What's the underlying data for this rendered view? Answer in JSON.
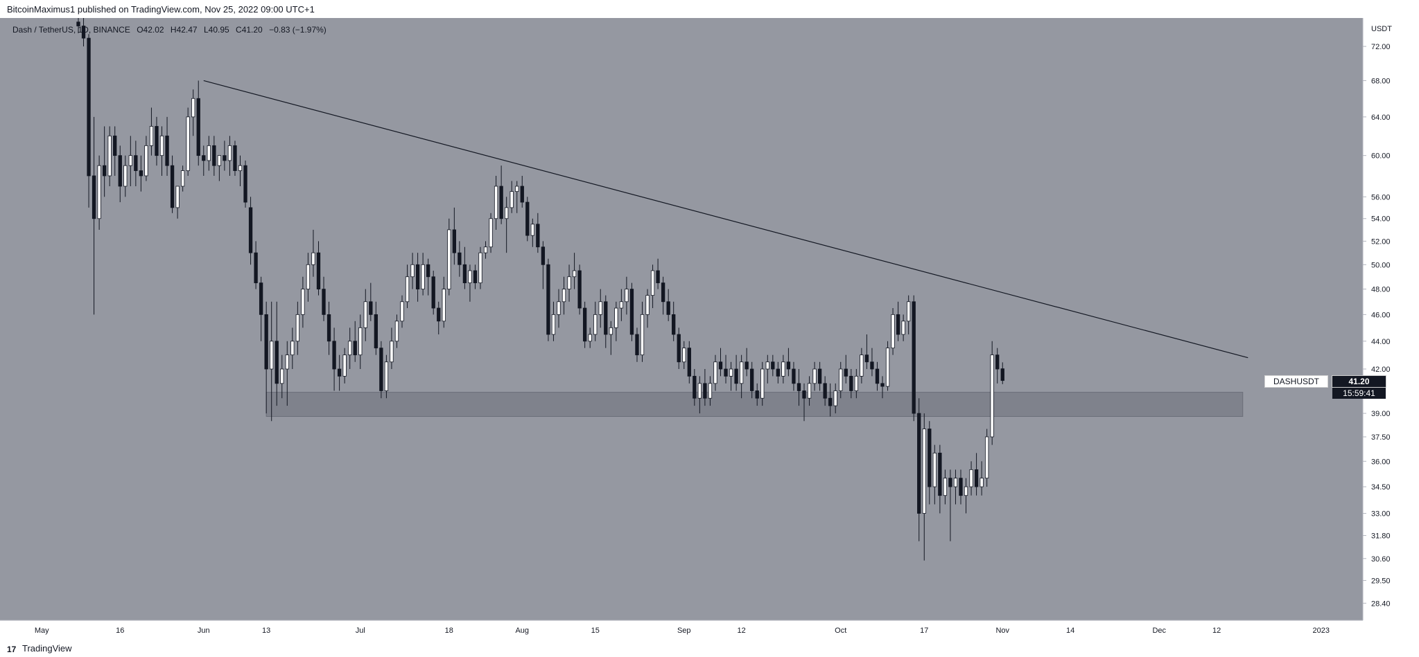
{
  "header": {
    "publisher": "BitcoinMaximus1 published on TradingView.com, Nov 25, 2022 09:00 UTC+1"
  },
  "legend": {
    "title": "Dash / TetherUS, 1D, BINANCE",
    "o_label": "O",
    "o_value": "42.02",
    "h_label": "H",
    "h_value": "42.47",
    "l_label": "L",
    "l_value": "40.95",
    "c_label": "C",
    "c_value": "41.20",
    "change": "−0.83 (−1.97%)"
  },
  "price_tag": {
    "symbol": "DASHUSDT",
    "price": "41.20",
    "countdown": "15:59:41"
  },
  "footer": {
    "brand": "TradingView",
    "logo_icon": "tradingview-logo-icon"
  },
  "colors": {
    "background": "#9598a1",
    "up": "#ffffff",
    "down": "#131722",
    "zone": "#787b86"
  },
  "chart_data": {
    "type": "candlestick",
    "symbol": "DASHUSDT",
    "interval": "1D",
    "scale": "log",
    "currency": "USDT",
    "y_ticks": [
      72.0,
      68.0,
      64.0,
      60.0,
      56.0,
      54.0,
      52.0,
      50.0,
      48.0,
      46.0,
      44.0,
      42.0,
      39.0,
      37.5,
      36.0,
      34.5,
      33.0,
      31.8,
      30.6,
      29.5,
      28.4
    ],
    "y_tick_labels": [
      "72.00",
      "68.00",
      "64.00",
      "60.00",
      "56.00",
      "54.00",
      "52.00",
      "50.00",
      "48.00",
      "46.00",
      "44.00",
      "42.00",
      "39.00",
      "37.50",
      "36.00",
      "34.50",
      "33.00",
      "31.80",
      "30.60",
      "29.50",
      "28.40"
    ],
    "x_ticks": [
      {
        "label": "May",
        "date": "2022-05-01"
      },
      {
        "label": "16",
        "date": "2022-05-16"
      },
      {
        "label": "Jun",
        "date": "2022-06-01"
      },
      {
        "label": "13",
        "date": "2022-06-13"
      },
      {
        "label": "Jul",
        "date": "2022-07-01"
      },
      {
        "label": "18",
        "date": "2022-07-18"
      },
      {
        "label": "Aug",
        "date": "2022-08-01"
      },
      {
        "label": "15",
        "date": "2022-08-15"
      },
      {
        "label": "Sep",
        "date": "2022-09-01"
      },
      {
        "label": "12",
        "date": "2022-09-12"
      },
      {
        "label": "Oct",
        "date": "2022-10-01"
      },
      {
        "label": "17",
        "date": "2022-10-17"
      },
      {
        "label": "Nov",
        "date": "2022-11-01"
      },
      {
        "label": "14",
        "date": "2022-11-14"
      },
      {
        "label": "Dec",
        "date": "2022-12-01"
      },
      {
        "label": "12",
        "date": "2022-12-12"
      },
      {
        "label": "2023",
        "date": "2023-01-01"
      }
    ],
    "y_range": [
      27.6,
      75.5
    ],
    "x_range": [
      "2022-04-23",
      "2023-01-09"
    ],
    "trendline": {
      "start": [
        "2022-06-01",
        68.0
      ],
      "end": [
        "2022-12-18",
        42.8
      ]
    },
    "support_zone": {
      "start": "2022-06-13",
      "end": "2022-12-17",
      "low": 38.8,
      "high": 40.4
    },
    "candles_start": "2022-05-08",
    "candles": [
      [
        75.0,
        77.0,
        73.6,
        74.5
      ],
      [
        74.5,
        75.5,
        72.0,
        73.0
      ],
      [
        73.0,
        73.5,
        55.0,
        58.0
      ],
      [
        58.0,
        64.0,
        46.0,
        54.0
      ],
      [
        54.0,
        60.0,
        53.0,
        59.0
      ],
      [
        59.0,
        63.0,
        56.0,
        58.0
      ],
      [
        58.0,
        63.0,
        57.0,
        62.0
      ],
      [
        62.0,
        63.0,
        58.0,
        60.0
      ],
      [
        60.0,
        61.0,
        55.5,
        57.0
      ],
      [
        57.0,
        60.0,
        56.0,
        59.0
      ],
      [
        59.0,
        62.0,
        57.0,
        60.0
      ],
      [
        60.0,
        61.5,
        57.0,
        58.5
      ],
      [
        58.5,
        60.0,
        56.5,
        58.0
      ],
      [
        58.0,
        62.0,
        57.5,
        61.0
      ],
      [
        61.0,
        65.0,
        60.0,
        63.0
      ],
      [
        63.0,
        64.0,
        59.0,
        60.0
      ],
      [
        60.0,
        63.0,
        58.0,
        62.0
      ],
      [
        62.0,
        64.0,
        58.0,
        59.0
      ],
      [
        59.0,
        60.0,
        54.5,
        55.0
      ],
      [
        55.0,
        57.0,
        54.0,
        57.0
      ],
      [
        57.0,
        59.0,
        56.5,
        58.5
      ],
      [
        58.5,
        65.0,
        58.0,
        64.0
      ],
      [
        64.0,
        67.0,
        62.0,
        66.0
      ],
      [
        66.0,
        68.0,
        59.0,
        60.0
      ],
      [
        60.0,
        61.0,
        58.0,
        59.5
      ],
      [
        59.5,
        62.0,
        58.5,
        61.0
      ],
      [
        61.0,
        62.0,
        58.0,
        59.0
      ],
      [
        59.0,
        60.0,
        57.5,
        60.0
      ],
      [
        60.0,
        61.5,
        58.5,
        59.5
      ],
      [
        59.5,
        62.0,
        58.0,
        61.0
      ],
      [
        61.0,
        61.5,
        58.0,
        58.5
      ],
      [
        58.5,
        60.0,
        57.0,
        59.0
      ],
      [
        59.0,
        59.5,
        55.0,
        55.5
      ],
      [
        55.0,
        56.0,
        50.0,
        51.0
      ],
      [
        51.0,
        52.0,
        48.0,
        48.5
      ],
      [
        48.5,
        49.0,
        44.0,
        46.0
      ],
      [
        46.0,
        47.0,
        39.0,
        42.0
      ],
      [
        42.0,
        47.0,
        38.5,
        44.0
      ],
      [
        44.0,
        47.0,
        39.5,
        41.0
      ],
      [
        41.0,
        43.0,
        40.0,
        42.0
      ],
      [
        42.0,
        44.0,
        39.5,
        43.0
      ],
      [
        43.0,
        45.0,
        42.0,
        44.0
      ],
      [
        44.0,
        47.0,
        43.0,
        46.0
      ],
      [
        46.0,
        49.0,
        45.0,
        48.0
      ],
      [
        48.0,
        51.0,
        47.0,
        50.0
      ],
      [
        50.0,
        53.0,
        49.0,
        51.0
      ],
      [
        51.0,
        52.0,
        47.5,
        48.0
      ],
      [
        48.0,
        49.0,
        45.5,
        46.0
      ],
      [
        46.0,
        47.0,
        43.0,
        44.0
      ],
      [
        44.0,
        45.0,
        40.5,
        42.0
      ],
      [
        42.0,
        43.0,
        40.5,
        41.5
      ],
      [
        41.5,
        43.5,
        41.0,
        43.0
      ],
      [
        43.0,
        45.0,
        42.0,
        44.0
      ],
      [
        44.0,
        45.5,
        42.5,
        43.0
      ],
      [
        43.0,
        46.0,
        42.0,
        45.0
      ],
      [
        45.0,
        48.0,
        44.0,
        47.0
      ],
      [
        47.0,
        48.5,
        45.5,
        46.0
      ],
      [
        46.0,
        47.0,
        43.0,
        43.5
      ],
      [
        43.5,
        44.0,
        40.0,
        40.5
      ],
      [
        40.5,
        43.0,
        40.0,
        42.5
      ],
      [
        42.5,
        45.0,
        42.0,
        44.0
      ],
      [
        44.0,
        46.0,
        43.5,
        45.5
      ],
      [
        45.5,
        47.5,
        45.0,
        47.0
      ],
      [
        47.0,
        50.0,
        46.5,
        49.0
      ],
      [
        49.0,
        51.0,
        48.0,
        50.0
      ],
      [
        50.0,
        51.0,
        47.0,
        48.0
      ],
      [
        48.0,
        51.0,
        47.5,
        50.0
      ],
      [
        50.0,
        50.5,
        47.5,
        49.0
      ],
      [
        49.0,
        49.5,
        46.0,
        46.5
      ],
      [
        46.5,
        47.0,
        44.5,
        45.5
      ],
      [
        45.5,
        49.0,
        45.0,
        48.0
      ],
      [
        48.0,
        54.0,
        47.5,
        53.0
      ],
      [
        53.0,
        55.0,
        50.0,
        51.0
      ],
      [
        51.0,
        52.0,
        49.0,
        50.0
      ],
      [
        50.0,
        51.5,
        48.0,
        48.5
      ],
      [
        48.5,
        50.0,
        47.0,
        49.5
      ],
      [
        49.5,
        50.0,
        48.0,
        48.5
      ],
      [
        48.5,
        51.5,
        48.0,
        51.0
      ],
      [
        51.0,
        52.0,
        50.5,
        51.5
      ],
      [
        51.5,
        54.5,
        51.0,
        54.0
      ],
      [
        54.0,
        58.0,
        53.0,
        57.0
      ],
      [
        57.0,
        59.0,
        53.5,
        54.0
      ],
      [
        54.0,
        56.0,
        51.0,
        55.0
      ],
      [
        55.0,
        57.5,
        54.5,
        56.5
      ],
      [
        56.5,
        57.5,
        54.5,
        57.0
      ],
      [
        57.0,
        58.0,
        55.0,
        55.5
      ],
      [
        55.5,
        56.0,
        52.0,
        52.5
      ],
      [
        52.5,
        54.0,
        51.5,
        53.5
      ],
      [
        53.5,
        54.5,
        51.0,
        51.5
      ],
      [
        51.5,
        52.0,
        48.0,
        50.0
      ],
      [
        50.0,
        50.5,
        44.0,
        44.5
      ],
      [
        44.5,
        47.0,
        44.0,
        46.0
      ],
      [
        46.0,
        48.0,
        45.0,
        47.0
      ],
      [
        47.0,
        49.0,
        46.0,
        48.0
      ],
      [
        48.0,
        50.0,
        47.0,
        49.0
      ],
      [
        49.0,
        51.0,
        48.0,
        49.5
      ],
      [
        49.5,
        50.0,
        46.0,
        46.5
      ],
      [
        46.5,
        47.0,
        43.5,
        44.0
      ],
      [
        44.0,
        45.0,
        43.5,
        44.5
      ],
      [
        44.5,
        47.0,
        44.0,
        46.0
      ],
      [
        46.0,
        48.0,
        45.0,
        47.0
      ],
      [
        47.0,
        47.5,
        43.5,
        44.5
      ],
      [
        44.5,
        45.5,
        43.0,
        45.0
      ],
      [
        45.0,
        47.0,
        44.0,
        46.5
      ],
      [
        46.5,
        48.0,
        45.5,
        47.0
      ],
      [
        47.0,
        49.0,
        46.0,
        48.0
      ],
      [
        48.0,
        48.5,
        44.0,
        44.5
      ],
      [
        44.5,
        45.0,
        42.5,
        43.0
      ],
      [
        43.0,
        47.0,
        42.5,
        46.0
      ],
      [
        46.0,
        48.0,
        45.0,
        47.5
      ],
      [
        47.5,
        50.0,
        46.5,
        49.5
      ],
      [
        49.5,
        50.5,
        48.0,
        48.5
      ],
      [
        48.5,
        49.0,
        46.0,
        47.0
      ],
      [
        47.0,
        48.0,
        45.5,
        46.0
      ],
      [
        46.0,
        47.0,
        44.0,
        44.5
      ],
      [
        44.5,
        45.0,
        42.0,
        42.5
      ],
      [
        42.5,
        44.0,
        42.0,
        43.5
      ],
      [
        43.5,
        44.0,
        41.0,
        41.5
      ],
      [
        41.5,
        42.0,
        39.5,
        40.0
      ],
      [
        40.0,
        41.5,
        39.0,
        41.0
      ],
      [
        41.0,
        42.0,
        39.5,
        40.0
      ],
      [
        40.0,
        41.5,
        39.5,
        41.0
      ],
      [
        41.0,
        43.0,
        40.5,
        42.5
      ],
      [
        42.5,
        43.5,
        41.5,
        42.0
      ],
      [
        42.0,
        43.0,
        41.0,
        41.5
      ],
      [
        41.5,
        42.5,
        40.5,
        42.0
      ],
      [
        42.0,
        43.0,
        40.5,
        41.0
      ],
      [
        41.0,
        43.0,
        40.0,
        42.5
      ],
      [
        42.5,
        43.5,
        41.5,
        42.0
      ],
      [
        42.0,
        42.5,
        40.0,
        40.5
      ],
      [
        40.5,
        41.0,
        39.5,
        40.0
      ],
      [
        40.0,
        42.5,
        39.5,
        42.0
      ],
      [
        42.0,
        43.0,
        41.0,
        42.5
      ],
      [
        42.5,
        43.0,
        41.5,
        42.0
      ],
      [
        42.0,
        42.5,
        41.0,
        41.5
      ],
      [
        41.5,
        43.0,
        41.0,
        42.5
      ],
      [
        42.5,
        43.5,
        41.5,
        42.0
      ],
      [
        42.0,
        42.5,
        40.5,
        41.0
      ],
      [
        41.0,
        42.0,
        39.5,
        40.5
      ],
      [
        40.5,
        41.0,
        38.5,
        40.0
      ],
      [
        40.0,
        41.5,
        39.5,
        41.0
      ],
      [
        41.0,
        42.5,
        40.5,
        42.0
      ],
      [
        42.0,
        42.5,
        40.5,
        41.0
      ],
      [
        41.0,
        41.5,
        39.5,
        40.0
      ],
      [
        40.0,
        41.0,
        38.8,
        39.5
      ],
      [
        39.5,
        41.0,
        39.0,
        40.5
      ],
      [
        40.5,
        42.5,
        40.0,
        42.0
      ],
      [
        42.0,
        43.0,
        41.0,
        41.5
      ],
      [
        41.5,
        42.0,
        40.0,
        40.5
      ],
      [
        40.5,
        42.0,
        40.0,
        41.5
      ],
      [
        41.5,
        43.5,
        41.0,
        43.0
      ],
      [
        43.0,
        44.5,
        42.0,
        42.5
      ],
      [
        42.5,
        43.5,
        41.5,
        42.0
      ],
      [
        42.0,
        42.5,
        40.5,
        41.0
      ],
      [
        41.0,
        41.5,
        40.0,
        40.8
      ],
      [
        40.8,
        44.0,
        40.5,
        43.5
      ],
      [
        43.5,
        46.5,
        43.0,
        46.0
      ],
      [
        46.0,
        47.0,
        44.0,
        44.5
      ],
      [
        44.5,
        46.0,
        44.0,
        45.5
      ],
      [
        45.5,
        47.5,
        44.5,
        47.0
      ],
      [
        47.0,
        47.5,
        38.5,
        39.0
      ],
      [
        39.0,
        40.0,
        31.5,
        33.0
      ],
      [
        33.0,
        39.0,
        30.5,
        38.0
      ],
      [
        38.0,
        38.5,
        33.5,
        34.5
      ],
      [
        34.5,
        37.0,
        33.5,
        36.5
      ],
      [
        36.5,
        37.0,
        33.0,
        34.0
      ],
      [
        34.0,
        35.5,
        33.5,
        35.0
      ],
      [
        35.0,
        35.5,
        31.5,
        34.5
      ],
      [
        34.5,
        35.5,
        33.5,
        35.0
      ],
      [
        35.0,
        35.5,
        33.5,
        34.0
      ],
      [
        34.0,
        35.0,
        33.0,
        34.5
      ],
      [
        34.5,
        36.0,
        34.0,
        35.5
      ],
      [
        35.5,
        36.5,
        34.0,
        34.5
      ],
      [
        34.5,
        36.0,
        34.0,
        35.0
      ],
      [
        35.0,
        38.0,
        34.5,
        37.5
      ],
      [
        37.5,
        44.0,
        37.0,
        43.0
      ],
      [
        43.0,
        43.5,
        41.0,
        42.0
      ],
      [
        42.02,
        42.47,
        40.95,
        41.2
      ]
    ]
  }
}
